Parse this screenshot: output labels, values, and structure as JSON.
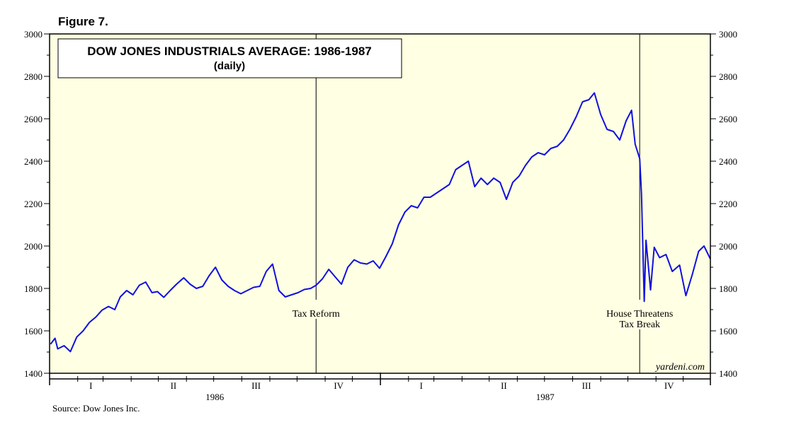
{
  "figure_label": "Figure 7.",
  "source": "Source: Dow Jones Inc.",
  "watermark": "yardeni.com",
  "colors": {
    "plot_bg": "#ffffe3",
    "line": "#1010e0",
    "frame": "#000000"
  },
  "chart_data": {
    "type": "line",
    "title": "DOW JONES INDUSTRIALS AVERAGE: 1986-1987",
    "subtitle": "(daily)",
    "ylim": [
      1400,
      3000
    ],
    "y_ticks": [
      "1400",
      "1600",
      "1800",
      "2000",
      "2200",
      "2400",
      "2600",
      "2800",
      "3000"
    ],
    "x_range": [
      "1986-01-01",
      "1987-12-31"
    ],
    "x_quarter_labels": [
      "I",
      "II",
      "III",
      "IV",
      "I",
      "II",
      "III",
      "IV"
    ],
    "x_year_labels": [
      "1986",
      "1987"
    ],
    "grid": false,
    "annotations": [
      {
        "date": "1986-10-22",
        "lines": [
          "Tax Reform"
        ]
      },
      {
        "date": "1987-10-14",
        "lines": [
          "House Threatens",
          "Tax Break"
        ]
      }
    ],
    "series": [
      {
        "points": [
          [
            "1986-01-02",
            1537
          ],
          [
            "1986-01-07",
            1565
          ],
          [
            "1986-01-10",
            1515
          ],
          [
            "1986-01-17",
            1530
          ],
          [
            "1986-01-24",
            1502
          ],
          [
            "1986-01-31",
            1571
          ],
          [
            "1986-02-07",
            1600
          ],
          [
            "1986-02-14",
            1640
          ],
          [
            "1986-02-21",
            1665
          ],
          [
            "1986-02-28",
            1698
          ],
          [
            "1986-03-07",
            1715
          ],
          [
            "1986-03-14",
            1700
          ],
          [
            "1986-03-20",
            1760
          ],
          [
            "1986-03-27",
            1790
          ],
          [
            "1986-04-03",
            1770
          ],
          [
            "1986-04-10",
            1815
          ],
          [
            "1986-04-17",
            1830
          ],
          [
            "1986-04-24",
            1780
          ],
          [
            "1986-04-30",
            1785
          ],
          [
            "1986-05-07",
            1758
          ],
          [
            "1986-05-14",
            1790
          ],
          [
            "1986-05-21",
            1820
          ],
          [
            "1986-05-29",
            1850
          ],
          [
            "1986-06-05",
            1820
          ],
          [
            "1986-06-12",
            1800
          ],
          [
            "1986-06-19",
            1810
          ],
          [
            "1986-06-26",
            1860
          ],
          [
            "1986-07-03",
            1900
          ],
          [
            "1986-07-10",
            1840
          ],
          [
            "1986-07-17",
            1810
          ],
          [
            "1986-07-24",
            1790
          ],
          [
            "1986-07-31",
            1775
          ],
          [
            "1986-08-07",
            1790
          ],
          [
            "1986-08-14",
            1805
          ],
          [
            "1986-08-21",
            1810
          ],
          [
            "1986-08-28",
            1880
          ],
          [
            "1986-09-04",
            1915
          ],
          [
            "1986-09-11",
            1790
          ],
          [
            "1986-09-18",
            1760
          ],
          [
            "1986-09-25",
            1770
          ],
          [
            "1986-10-02",
            1780
          ],
          [
            "1986-10-09",
            1795
          ],
          [
            "1986-10-16",
            1800
          ],
          [
            "1986-10-22",
            1815
          ],
          [
            "1986-10-29",
            1845
          ],
          [
            "1986-11-05",
            1890
          ],
          [
            "1986-11-12",
            1855
          ],
          [
            "1986-11-19",
            1820
          ],
          [
            "1986-11-26",
            1900
          ],
          [
            "1986-12-03",
            1935
          ],
          [
            "1986-12-10",
            1920
          ],
          [
            "1986-12-17",
            1915
          ],
          [
            "1986-12-24",
            1930
          ],
          [
            "1986-12-31",
            1895
          ],
          [
            "1987-01-07",
            1950
          ],
          [
            "1987-01-14",
            2010
          ],
          [
            "1987-01-21",
            2100
          ],
          [
            "1987-01-28",
            2160
          ],
          [
            "1987-02-04",
            2190
          ],
          [
            "1987-02-11",
            2180
          ],
          [
            "1987-02-18",
            2230
          ],
          [
            "1987-02-25",
            2230
          ],
          [
            "1987-03-04",
            2250
          ],
          [
            "1987-03-11",
            2270
          ],
          [
            "1987-03-18",
            2290
          ],
          [
            "1987-03-25",
            2360
          ],
          [
            "1987-04-01",
            2380
          ],
          [
            "1987-04-08",
            2400
          ],
          [
            "1987-04-15",
            2280
          ],
          [
            "1987-04-22",
            2320
          ],
          [
            "1987-04-29",
            2290
          ],
          [
            "1987-05-06",
            2320
          ],
          [
            "1987-05-13",
            2300
          ],
          [
            "1987-05-20",
            2220
          ],
          [
            "1987-05-27",
            2300
          ],
          [
            "1987-06-03",
            2330
          ],
          [
            "1987-06-10",
            2380
          ],
          [
            "1987-06-17",
            2420
          ],
          [
            "1987-06-24",
            2440
          ],
          [
            "1987-07-01",
            2430
          ],
          [
            "1987-07-08",
            2460
          ],
          [
            "1987-07-15",
            2470
          ],
          [
            "1987-07-22",
            2500
          ],
          [
            "1987-07-29",
            2550
          ],
          [
            "1987-08-05",
            2610
          ],
          [
            "1987-08-12",
            2680
          ],
          [
            "1987-08-19",
            2690
          ],
          [
            "1987-08-25",
            2722
          ],
          [
            "1987-09-01",
            2620
          ],
          [
            "1987-09-08",
            2550
          ],
          [
            "1987-09-15",
            2540
          ],
          [
            "1987-09-22",
            2500
          ],
          [
            "1987-09-29",
            2590
          ],
          [
            "1987-10-05",
            2640
          ],
          [
            "1987-10-09",
            2480
          ],
          [
            "1987-10-14",
            2412
          ],
          [
            "1987-10-16",
            2247
          ],
          [
            "1987-10-19",
            1739
          ],
          [
            "1987-10-21",
            2027
          ],
          [
            "1987-10-26",
            1793
          ],
          [
            "1987-10-30",
            1994
          ],
          [
            "1987-11-05",
            1945
          ],
          [
            "1987-11-12",
            1960
          ],
          [
            "1987-11-19",
            1880
          ],
          [
            "1987-11-27",
            1910
          ],
          [
            "1987-12-04",
            1766
          ],
          [
            "1987-12-11",
            1865
          ],
          [
            "1987-12-18",
            1975
          ],
          [
            "1987-12-24",
            2000
          ],
          [
            "1987-12-31",
            1939
          ]
        ]
      }
    ]
  }
}
